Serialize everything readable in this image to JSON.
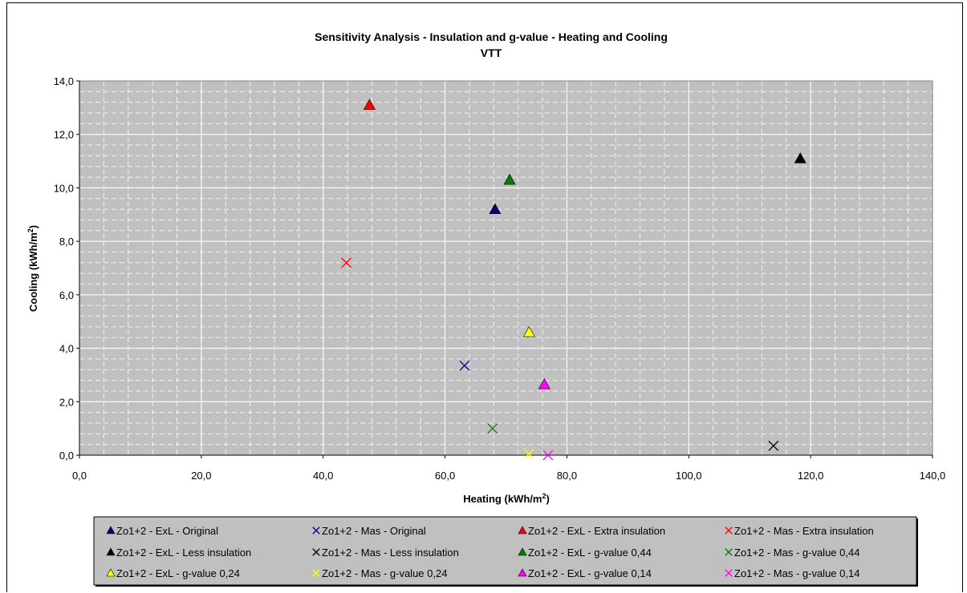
{
  "chart_data": {
    "type": "scatter",
    "title": "Sensitivity Analysis - Insulation and g-value - Heating and Cooling",
    "subtitle": "VTT",
    "xlabel": "Heating (kWh/m2)",
    "ylabel": "Cooling (kWh/m2)",
    "xlim": [
      0,
      140
    ],
    "ylim": [
      0,
      14
    ],
    "x_major_step": 20,
    "y_major_step": 2,
    "x_tick_labels": [
      "0,0",
      "20,0",
      "40,0",
      "60,0",
      "80,0",
      "100,0",
      "120,0",
      "140,0"
    ],
    "y_tick_labels": [
      "0,0",
      "2,0",
      "4,0",
      "6,0",
      "8,0",
      "10,0",
      "12,0",
      "14,0"
    ],
    "grid": true,
    "plot_background": "#c0c0c0",
    "legend_position": "bottom",
    "series": [
      {
        "name": "Zo1+2 - ExL - Original",
        "marker": "triangle",
        "color": "#000080",
        "points": [
          [
            68.2,
            9.2
          ]
        ]
      },
      {
        "name": "Zo1+2 - Mas - Original",
        "marker": "x",
        "color": "#000080",
        "points": [
          [
            63.2,
            3.35
          ]
        ]
      },
      {
        "name": "Zo1+2 - ExL - Extra insulation",
        "marker": "triangle",
        "color": "#ff0000",
        "points": [
          [
            47.6,
            13.1
          ]
        ]
      },
      {
        "name": "Zo1+2 - Mas - Extra insulation",
        "marker": "x",
        "color": "#ff0000",
        "points": [
          [
            43.8,
            7.2
          ]
        ]
      },
      {
        "name": "Zo1+2 - ExL - Less insulation",
        "marker": "triangle",
        "color": "#000000",
        "points": [
          [
            118.3,
            11.1
          ]
        ]
      },
      {
        "name": "Zo1+2 - Mas - Less insulation",
        "marker": "x",
        "color": "#000000",
        "points": [
          [
            113.9,
            0.35
          ]
        ]
      },
      {
        "name": "Zo1+2 - ExL - g-value 0,44",
        "marker": "triangle",
        "color": "#008000",
        "points": [
          [
            70.6,
            10.3
          ]
        ]
      },
      {
        "name": "Zo1+2 - Mas - g-value 0,44",
        "marker": "x",
        "color": "#008000",
        "points": [
          [
            67.8,
            1.0
          ]
        ]
      },
      {
        "name": "Zo1+2 - ExL - g-value 0,24",
        "marker": "triangle",
        "color": "#ffff00",
        "points": [
          [
            73.8,
            4.6
          ]
        ]
      },
      {
        "name": "Zo1+2 - Mas - g-value 0,24",
        "marker": "x",
        "color": "#ffff00",
        "points": [
          [
            73.8,
            0.05
          ]
        ]
      },
      {
        "name": "Zo1+2 - ExL - g-value 0,14",
        "marker": "triangle",
        "color": "#ff00ff",
        "points": [
          [
            76.3,
            2.65
          ]
        ]
      },
      {
        "name": "Zo1+2 - Mas - g-value 0,14",
        "marker": "x",
        "color": "#ff00ff",
        "points": [
          [
            76.9,
            0.0
          ]
        ]
      }
    ]
  }
}
